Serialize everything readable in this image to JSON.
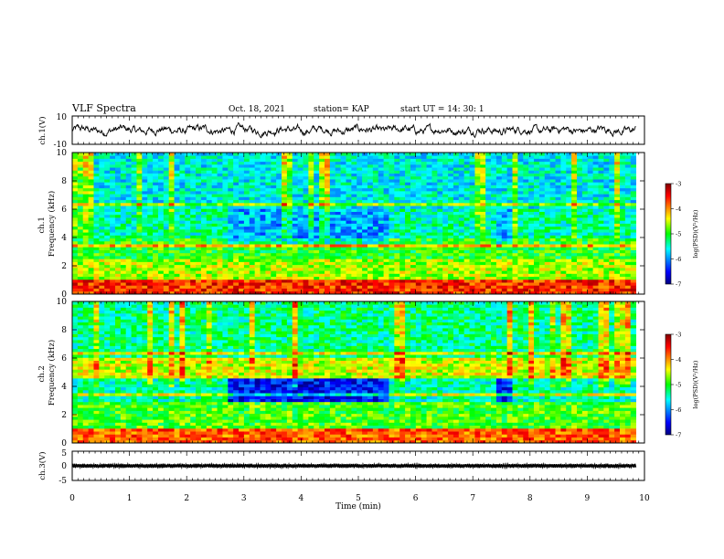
{
  "header": {
    "title": "VLF Spectra",
    "date": "Oct. 18, 2021",
    "station": "station= KAP",
    "start": "start  UT =  14: 30: 1"
  },
  "chart_data": [
    {
      "type": "line",
      "panel": "ch1-waveform",
      "ylabel": "ch.1(V)",
      "ylim": [
        -10,
        10
      ],
      "yticks": [
        "10",
        "-10"
      ],
      "x_range_min": [
        0,
        9.85
      ],
      "description_values": "noisy waveform oscillating about 0 V, roughly between -5 and +5 V",
      "y_mean": 0
    },
    {
      "type": "heatmap",
      "panel": "ch1-spectrogram",
      "ylabel": "ch.1\nFrequency (kHz)",
      "ylim": [
        0,
        10
      ],
      "yticks": [
        "0",
        "2",
        "4",
        "6",
        "8",
        "10"
      ],
      "x_range_min": [
        0,
        9.85
      ],
      "colorbar": {
        "label": "log(PSD)(V²/Hz)",
        "range": [
          -7,
          -3
        ],
        "ticks": [
          "-3",
          "-4",
          "-5",
          "-6",
          "-7"
        ]
      },
      "segments_min": [
        0,
        2.7,
        5.55,
        7.4,
        7.7,
        9.85
      ],
      "band_levels": [
        {
          "f_khz": [
            0,
            1
          ],
          "level": -3.6
        },
        {
          "f_khz": [
            1,
            2.5
          ],
          "level": -4.6
        },
        {
          "f_khz": [
            2.5,
            4
          ],
          "level": -5.0
        },
        {
          "f_khz": [
            4,
            6
          ],
          "level": -5.4
        },
        {
          "f_khz": [
            6,
            10
          ],
          "level": -5.6
        }
      ]
    },
    {
      "type": "heatmap",
      "panel": "ch2-spectrogram",
      "ylabel": "ch.2\nFrequency (kHz)",
      "ylim": [
        0,
        10
      ],
      "yticks": [
        "0",
        "2",
        "4",
        "6",
        "8",
        "10"
      ],
      "x_range_min": [
        0,
        9.85
      ],
      "colorbar": {
        "label": "log(PSD)(V²/Hz)",
        "range": [
          -7,
          -3
        ],
        "ticks": [
          "-3",
          "-4",
          "-5",
          "-6",
          "-7"
        ]
      },
      "segments_min": [
        0,
        2.7,
        5.55,
        7.4,
        7.7,
        9.85
      ],
      "band_levels": [
        {
          "f_khz": [
            0,
            1
          ],
          "level": -3.8
        },
        {
          "f_khz": [
            1,
            3
          ],
          "level": -4.9
        },
        {
          "f_khz": [
            3,
            4.5
          ],
          "level": -5.4
        },
        {
          "f_khz": [
            4.5,
            6
          ],
          "level": -4.5
        },
        {
          "f_khz": [
            6,
            10
          ],
          "level": -5.3
        }
      ]
    },
    {
      "type": "line",
      "panel": "ch3-waveform",
      "ylabel": "ch.3(V)",
      "ylim": [
        -5,
        5
      ],
      "yticks": [
        "5",
        "0",
        "-5"
      ],
      "x_range_min": [
        0,
        9.85
      ],
      "y_mean": 0
    }
  ],
  "xaxis": {
    "label": "Time (min)",
    "range": [
      0,
      10
    ],
    "ticks": [
      "0",
      "1",
      "2",
      "3",
      "4",
      "5",
      "6",
      "7",
      "8",
      "9",
      "10"
    ]
  },
  "colors": {
    "line": "#000000",
    "colormap": [
      "#000080",
      "#0000ff",
      "#00ffff",
      "#00ff00",
      "#ffff00",
      "#ff0000",
      "#800000"
    ]
  }
}
